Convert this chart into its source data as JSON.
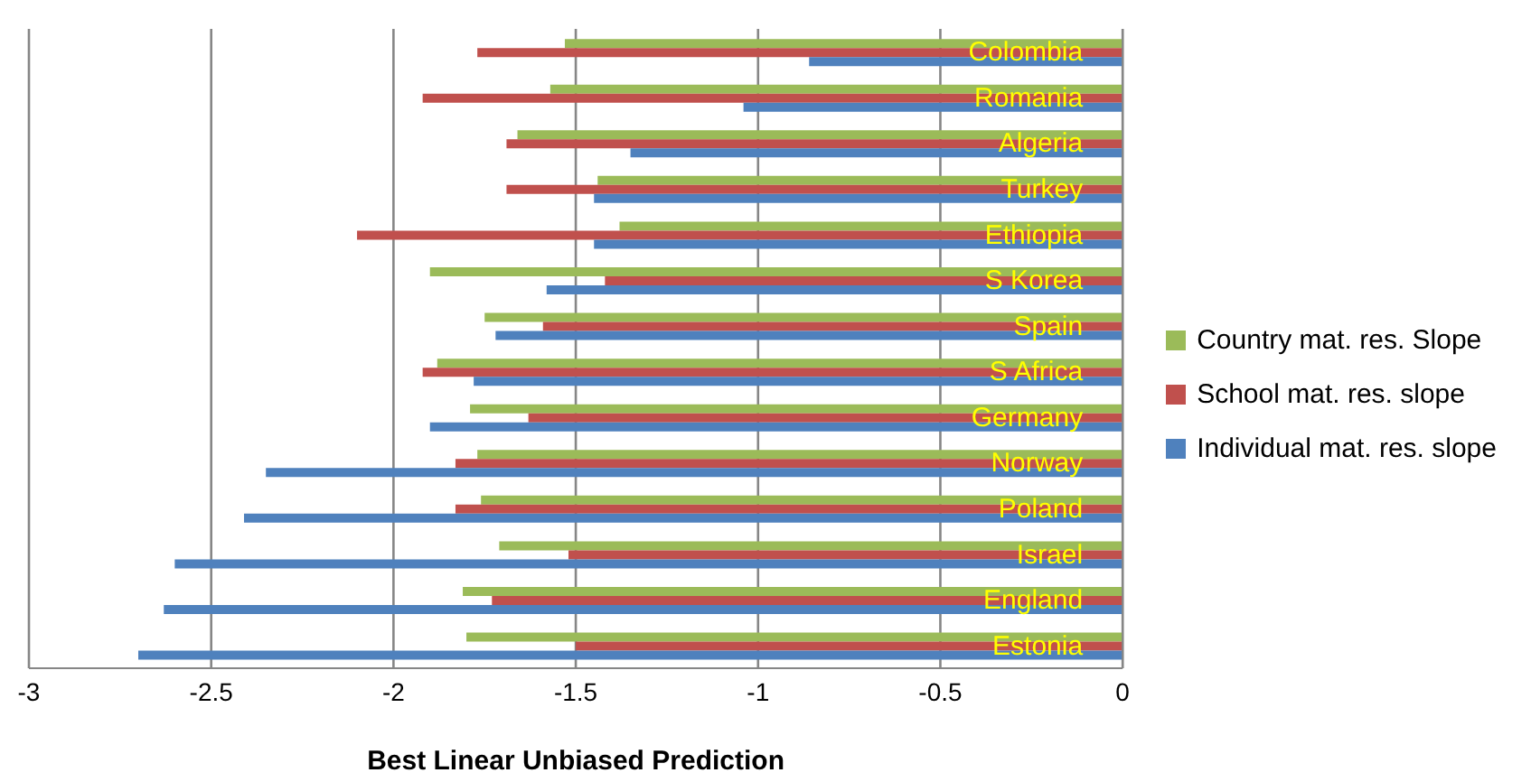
{
  "chart_data": {
    "type": "bar",
    "orientation": "horizontal",
    "xlabel": "Best Linear Unbiased Prediction",
    "categories": [
      "Colombia",
      "Romania",
      "Algeria",
      "Turkey",
      "Ethiopia",
      "S Korea",
      "Spain",
      "S Africa",
      "Germany",
      "Norway",
      "Poland",
      "Israel",
      "England",
      "Estonia"
    ],
    "series": [
      {
        "name": "Country mat. res. Slope",
        "color": "#9bbb59",
        "values": [
          -1.53,
          -1.57,
          -1.66,
          -1.44,
          -1.38,
          -1.9,
          -1.75,
          -1.88,
          -1.79,
          -1.77,
          -1.76,
          -1.71,
          -1.81,
          -1.8
        ]
      },
      {
        "name": "School mat. res. slope",
        "color": "#c0504d",
        "values": [
          -1.77,
          -1.92,
          -1.69,
          -1.69,
          -2.1,
          -1.42,
          -1.59,
          -1.92,
          -1.63,
          -1.83,
          -1.83,
          -1.52,
          -1.73,
          -1.5
        ]
      },
      {
        "name": "Individual mat. res. slope",
        "color": "#4f81bd",
        "values": [
          -0.86,
          -1.04,
          -1.35,
          -1.45,
          -1.45,
          -1.58,
          -1.72,
          -1.78,
          -1.9,
          -2.35,
          -2.41,
          -2.6,
          -2.63,
          -2.7
        ]
      }
    ],
    "xlim": [
      -3,
      0
    ],
    "xticks": [
      -3,
      -2.5,
      -2,
      -1.5,
      -1,
      -0.5,
      0
    ],
    "grid": "x",
    "legend": "right"
  }
}
